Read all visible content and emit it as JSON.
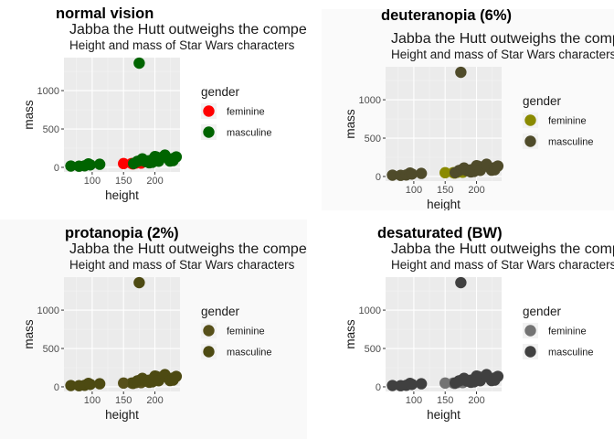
{
  "chart_data": [
    {
      "type": "scatter",
      "panel_label": "normal vision",
      "title": "Jabba the Hutt outweighs the competition",
      "subtitle": "Height and mass of Star Wars characters",
      "xlabel": "height",
      "ylabel": "mass",
      "legend_title": "gender",
      "legend_position": "right",
      "background": "#ffffff",
      "colors": {
        "feminine": "#ff0000",
        "masculine": "#006400"
      }
    },
    {
      "type": "scatter",
      "panel_label": "deuteranopia (6%)",
      "title": "Jabba the Hutt outweighs the competition",
      "subtitle": "Height and mass of Star Wars characters",
      "xlabel": "height",
      "ylabel": "mass",
      "legend_title": "gender",
      "legend_position": "right",
      "background": "#fafafa",
      "colors": {
        "feminine": "#8a8a00",
        "masculine": "#4f4b2a"
      }
    },
    {
      "type": "scatter",
      "panel_label": "protanopia (2%)",
      "title": "Jabba the Hutt outweighs the competition",
      "subtitle": "Height and mass of Star Wars characters",
      "xlabel": "height",
      "ylabel": "mass",
      "legend_title": "gender",
      "legend_position": "right",
      "background": "#f9f9f9",
      "colors": {
        "feminine": "#57501a",
        "masculine": "#4d4a12"
      }
    },
    {
      "type": "scatter",
      "panel_label": "desaturated (BW)",
      "title": "Jabba the Hutt outweighs the competition",
      "subtitle": "Height and mass of Star Wars characters",
      "xlabel": "height",
      "ylabel": "mass",
      "legend_title": "gender",
      "legend_position": "right",
      "background": "#ffffff",
      "colors": {
        "feminine": "#737373",
        "masculine": "#404040"
      }
    }
  ],
  "shared": {
    "xlim": [
      55,
      240
    ],
    "ylim": [
      -60,
      1430
    ],
    "x_ticks": [
      100,
      150,
      200
    ],
    "y_ticks": [
      0,
      500,
      1000
    ],
    "grid": true,
    "legend_entries": [
      "feminine",
      "masculine"
    ],
    "points": [
      {
        "x": 66,
        "y": 17,
        "g": "masculine"
      },
      {
        "x": 79,
        "y": 15,
        "g": "masculine"
      },
      {
        "x": 88,
        "y": 20,
        "g": "masculine"
      },
      {
        "x": 94,
        "y": 45,
        "g": "masculine"
      },
      {
        "x": 97,
        "y": 32,
        "g": "masculine"
      },
      {
        "x": 112,
        "y": 40,
        "g": "masculine"
      },
      {
        "x": 150,
        "y": 49,
        "g": "feminine"
      },
      {
        "x": 163,
        "y": 50,
        "g": "feminine"
      },
      {
        "x": 165,
        "y": 45,
        "g": "feminine"
      },
      {
        "x": 168,
        "y": 55,
        "g": "feminine"
      },
      {
        "x": 170,
        "y": 56,
        "g": "feminine"
      },
      {
        "x": 178,
        "y": 55,
        "g": "feminine"
      },
      {
        "x": 166,
        "y": 50,
        "g": "masculine"
      },
      {
        "x": 172,
        "y": 77,
        "g": "masculine"
      },
      {
        "x": 175,
        "y": 1358,
        "g": "masculine"
      },
      {
        "x": 177,
        "y": 90,
        "g": "masculine"
      },
      {
        "x": 180,
        "y": 110,
        "g": "masculine"
      },
      {
        "x": 183,
        "y": 84,
        "g": "masculine"
      },
      {
        "x": 185,
        "y": 75,
        "g": "masculine"
      },
      {
        "x": 188,
        "y": 84,
        "g": "masculine"
      },
      {
        "x": 191,
        "y": 60,
        "g": "masculine"
      },
      {
        "x": 193,
        "y": 89,
        "g": "masculine"
      },
      {
        "x": 196,
        "y": 66,
        "g": "masculine"
      },
      {
        "x": 198,
        "y": 82,
        "g": "masculine"
      },
      {
        "x": 200,
        "y": 140,
        "g": "masculine"
      },
      {
        "x": 202,
        "y": 136,
        "g": "masculine"
      },
      {
        "x": 206,
        "y": 80,
        "g": "masculine"
      },
      {
        "x": 213,
        "y": 136,
        "g": "masculine"
      },
      {
        "x": 216,
        "y": 159,
        "g": "masculine"
      },
      {
        "x": 224,
        "y": 82,
        "g": "masculine"
      },
      {
        "x": 228,
        "y": 112,
        "g": "masculine"
      },
      {
        "x": 229,
        "y": 88,
        "g": "masculine"
      },
      {
        "x": 234,
        "y": 136,
        "g": "masculine"
      }
    ]
  }
}
